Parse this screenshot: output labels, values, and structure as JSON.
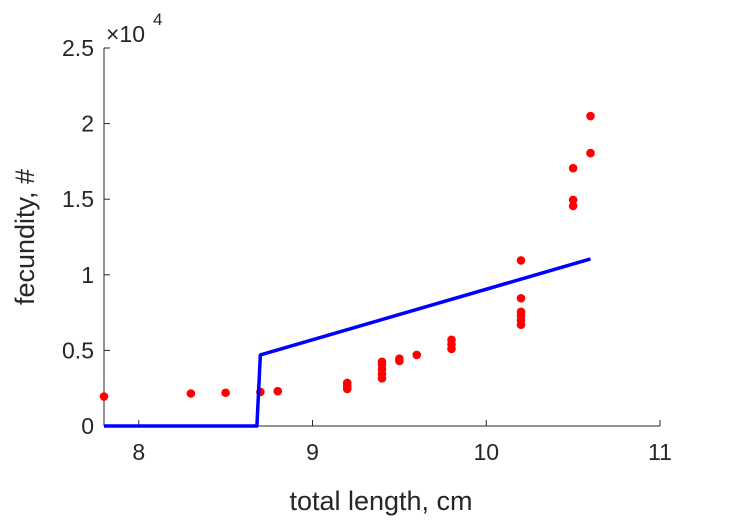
{
  "chart_data": {
    "type": "scatter",
    "xlabel": "total length, cm",
    "ylabel": "fecundity, #",
    "xlim": [
      7.8,
      11
    ],
    "ylim": [
      0,
      25000
    ],
    "x_ticks": [
      8,
      9,
      10,
      11
    ],
    "y_ticks": [
      0,
      5000,
      10000,
      15000,
      20000,
      25000
    ],
    "y_tick_labels": [
      "0",
      "0.5",
      "1",
      "1.5",
      "2",
      "2.5"
    ],
    "y_exponent_label": "×10",
    "y_exponent_power": "4",
    "grid": false,
    "series": [
      {
        "type": "scatter",
        "color": "#ff0000",
        "points": [
          [
            7.8,
            1950
          ],
          [
            8.3,
            2150
          ],
          [
            8.5,
            2200
          ],
          [
            8.7,
            2250
          ],
          [
            8.8,
            2300
          ],
          [
            9.2,
            2450
          ],
          [
            9.2,
            2650
          ],
          [
            9.2,
            2850
          ],
          [
            9.4,
            3150
          ],
          [
            9.4,
            3450
          ],
          [
            9.4,
            3750
          ],
          [
            9.4,
            4050
          ],
          [
            9.4,
            4250
          ],
          [
            9.5,
            4300
          ],
          [
            9.5,
            4450
          ],
          [
            9.6,
            4700
          ],
          [
            9.8,
            5100
          ],
          [
            9.8,
            5400
          ],
          [
            9.8,
            5700
          ],
          [
            10.2,
            6700
          ],
          [
            10.2,
            7000
          ],
          [
            10.2,
            7300
          ],
          [
            10.2,
            7550
          ],
          [
            10.2,
            8450
          ],
          [
            10.2,
            10950
          ],
          [
            10.5,
            14550
          ],
          [
            10.5,
            14950
          ],
          [
            10.5,
            17050
          ],
          [
            10.6,
            18050
          ],
          [
            10.6,
            20500
          ]
        ]
      },
      {
        "type": "line",
        "color": "#0000ff",
        "points": [
          [
            7.8,
            0
          ],
          [
            8.68,
            0
          ],
          [
            8.7,
            4700
          ],
          [
            10.6,
            11050
          ]
        ]
      }
    ]
  }
}
